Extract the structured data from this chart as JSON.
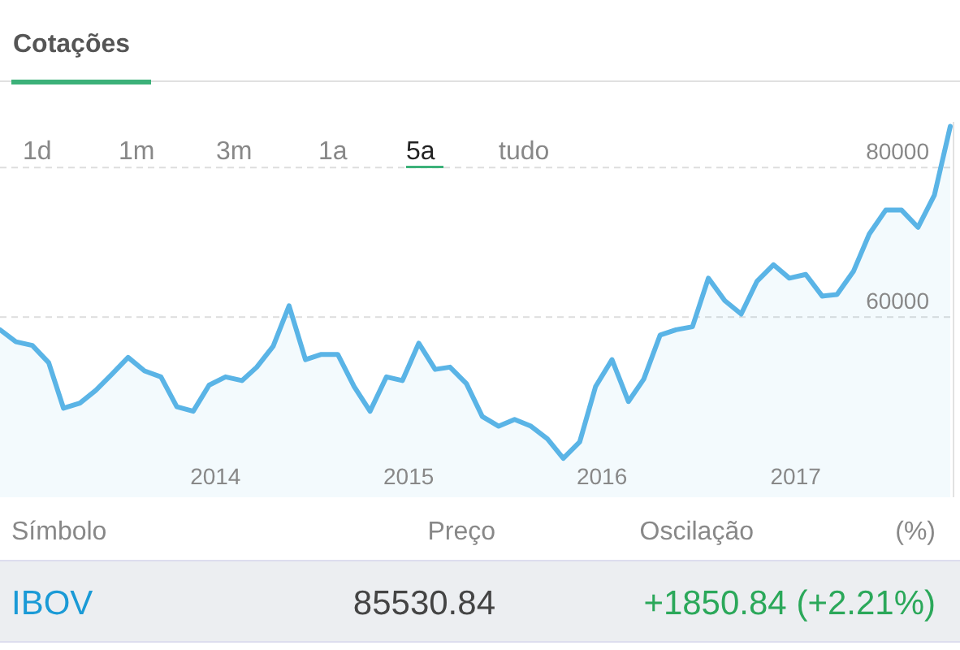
{
  "chart_data": {
    "type": "area",
    "title": "Cotações",
    "x": [
      "2012-11-20",
      "2012-12-20",
      "2013-01-20",
      "2013-02-20",
      "2013-03-20",
      "2013-04-20",
      "2013-05-20",
      "2013-06-20",
      "2013-07-20",
      "2013-08-20",
      "2013-09-20",
      "2013-10-20",
      "2013-11-20",
      "2013-12-20",
      "2014-01-20",
      "2014-02-20",
      "2014-03-20",
      "2014-04-20",
      "2014-05-20",
      "2014-06-20",
      "2014-07-20",
      "2014-08-20",
      "2014-09-20",
      "2014-10-20",
      "2014-11-20",
      "2014-12-20",
      "2015-01-20",
      "2015-02-20",
      "2015-03-20",
      "2015-04-20",
      "2015-05-20",
      "2015-06-20",
      "2015-07-20",
      "2015-08-20",
      "2015-09-20",
      "2015-10-20",
      "2015-11-20",
      "2015-12-20",
      "2016-01-20",
      "2016-02-20",
      "2016-03-20",
      "2016-04-20",
      "2016-05-20",
      "2016-06-20",
      "2016-07-20",
      "2016-08-20",
      "2016-09-20",
      "2016-10-20",
      "2016-11-20",
      "2016-12-20",
      "2017-01-20",
      "2017-02-20",
      "2017-03-20",
      "2017-04-20",
      "2017-05-20",
      "2017-06-20",
      "2017-07-20",
      "2017-08-20",
      "2017-09-20",
      "2017-10-20"
    ],
    "series": [
      {
        "color": "#5ab4e6",
        "values": [
          58300,
          56700,
          56200,
          53900,
          47800,
          48500,
          50200,
          52400,
          54600,
          52800,
          52000,
          48000,
          47400,
          50900,
          52000,
          51500,
          53300,
          56100,
          61500,
          54300,
          55000,
          55000,
          50700,
          47400,
          52000,
          51500,
          56500,
          53000,
          53300,
          51100,
          46700,
          45400,
          46300,
          45400,
          43700,
          41100,
          43300,
          50700,
          54300,
          48700,
          51700,
          57600,
          58300,
          58700,
          65200,
          62200,
          60400,
          64800,
          67000,
          65200,
          65700,
          62800,
          63000,
          66100,
          71100,
          74300,
          74300,
          72000,
          76300,
          85500
        ]
      }
    ],
    "xlim": [
      "2012-11-20",
      "2017-10-23"
    ],
    "xticks": [
      {
        "value": "2014-01-01",
        "label": "2014"
      },
      {
        "value": "2015-01-01",
        "label": "2015"
      },
      {
        "value": "2016-01-01",
        "label": "2016"
      },
      {
        "value": "2017-01-01",
        "label": "2017"
      }
    ],
    "ylim": [
      35900,
      86100
    ],
    "yticks": [
      60000,
      80000
    ],
    "grid": "y",
    "annotations": [
      "1d",
      "1m",
      "3m",
      "1a",
      "5a",
      "tudo",
      "Símbolo",
      "Preço",
      "Oscilação",
      "(%)",
      "IBOV",
      "85530.84",
      "+1850.84 (+2.21%)"
    ]
  }
}
